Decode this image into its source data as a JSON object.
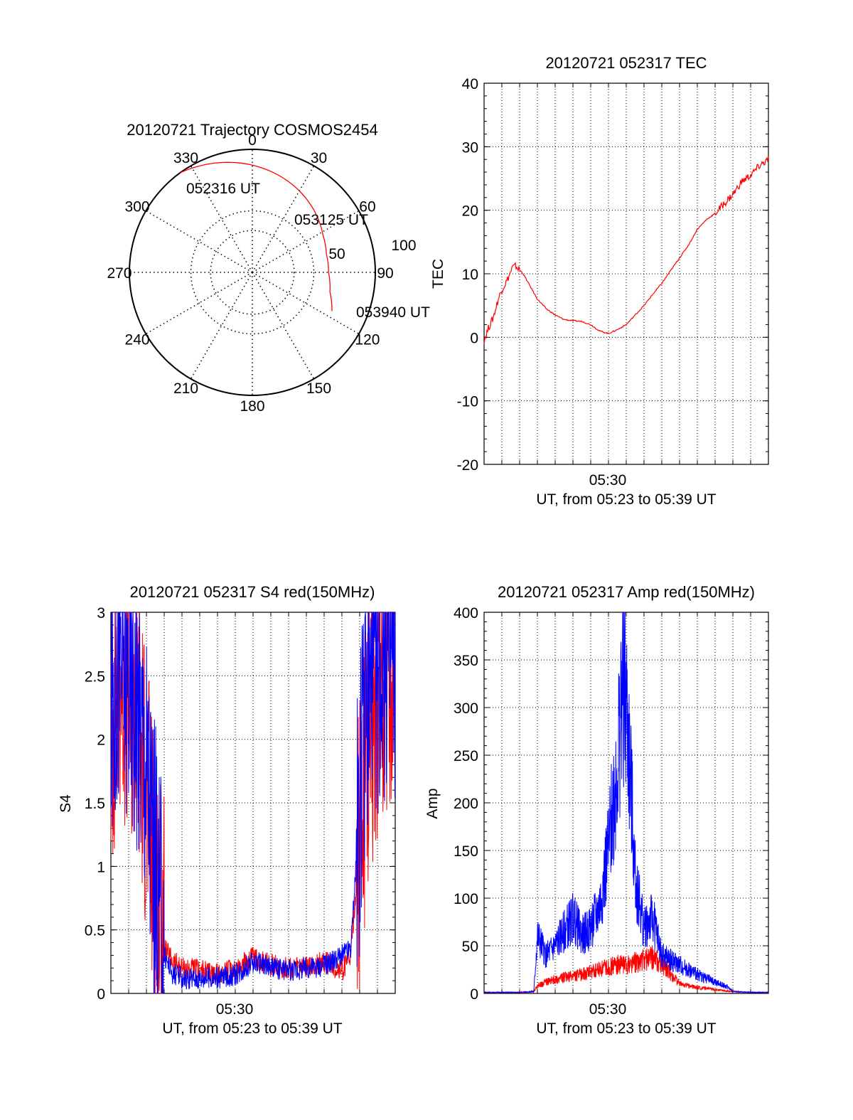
{
  "colors": {
    "red": "#ff0000",
    "blue": "#0000ff",
    "axis": "#000000",
    "grid": "#000000"
  },
  "chart_data": [
    {
      "type": "polar",
      "title": "20120721 Trajectory COSMOS2454",
      "angle_labels": [
        "0",
        "30",
        "60",
        "90",
        "120",
        "150",
        "180",
        "210",
        "240",
        "270",
        "300",
        "330"
      ],
      "radius_labels": [
        "50",
        "100"
      ],
      "grid": true,
      "trajectory": {
        "series_color": "red",
        "azimuth": [
          324,
          338,
          352,
          6,
          20,
          34,
          48,
          62,
          76,
          90,
          104,
          116
        ],
        "zenith": [
          100,
          95,
          90,
          85,
          80,
          75,
          70,
          65,
          62,
          62,
          65,
          72
        ],
        "labels": [
          "052316 UT",
          "053125 UT",
          "053940 UT"
        ]
      }
    },
    {
      "type": "line",
      "title": "20120721 052317 TEC",
      "xlabel": "UT, from 05:23 to 05:39 UT",
      "ylabel": "TEC",
      "x_tick_labels": [
        "05:30"
      ],
      "ylim": [
        -20,
        40
      ],
      "yticks": [
        "-20",
        "-10",
        "0",
        "10",
        "20",
        "30",
        "40"
      ],
      "grid": true,
      "series": [
        {
          "color": "red",
          "x": [
            0,
            0.25,
            0.5,
            0.8,
            1.0,
            1.3,
            1.6,
            1.8,
            2.2,
            2.6,
            3.0,
            3.5,
            4.0,
            4.5,
            5.0,
            5.5,
            6.0,
            6.5,
            7.0,
            7.5,
            8.0,
            8.5,
            9.0,
            9.5,
            10.0,
            10.5,
            11.0,
            11.5,
            12.0,
            12.5,
            13.0,
            13.5,
            14.0,
            14.5,
            15.0,
            15.5,
            16.0
          ],
          "y": [
            -0.5,
            1.5,
            3.0,
            6.0,
            7.5,
            9.0,
            11.0,
            11.2,
            10.0,
            8.0,
            6.0,
            4.5,
            3.5,
            2.8,
            2.6,
            2.5,
            2.0,
            1.0,
            0.6,
            1.2,
            2.0,
            3.5,
            5.0,
            6.8,
            8.5,
            10.5,
            12.5,
            14.5,
            17.0,
            18.5,
            19.5,
            21.0,
            22.5,
            24.5,
            25.5,
            27.0,
            28.0
          ]
        }
      ]
    },
    {
      "type": "line",
      "title": "20120721 052317 S4 red(150MHz)",
      "xlabel": "UT, from 05:23 to 05:39 UT",
      "ylabel": "S4",
      "x_tick_labels": [
        "05:30"
      ],
      "ylim": [
        0,
        3
      ],
      "yticks": [
        "0",
        "0.5",
        "1",
        "1.5",
        "2",
        "2.5",
        "3"
      ],
      "grid": true,
      "series": [
        {
          "color": "red",
          "x": [
            0,
            0.5,
            1.0,
            1.5,
            2.0,
            2.5,
            3.0,
            3.5,
            4.0,
            5.0,
            6.0,
            7.0,
            8.0,
            9.0,
            10.0,
            11.0,
            12.0,
            13.0,
            13.5,
            14.0,
            14.5,
            15.0,
            15.5,
            16.0
          ],
          "y": [
            2.0,
            2.6,
            2.4,
            2.2,
            1.6,
            0.8,
            0.35,
            0.25,
            0.2,
            0.18,
            0.15,
            0.2,
            0.28,
            0.22,
            0.2,
            0.2,
            0.25,
            0.18,
            0.3,
            1.2,
            2.0,
            2.4,
            2.6,
            2.5
          ]
        },
        {
          "color": "blue",
          "x": [
            0,
            0.5,
            1.0,
            1.5,
            2.0,
            2.5,
            3.0,
            3.5,
            4.0,
            5.0,
            6.0,
            7.0,
            8.0,
            9.0,
            10.0,
            11.0,
            12.0,
            13.0,
            13.5,
            14.0,
            14.5,
            15.0,
            15.5,
            16.0
          ],
          "y": [
            2.2,
            2.7,
            2.5,
            2.3,
            1.8,
            1.0,
            0.3,
            0.15,
            0.12,
            0.12,
            0.12,
            0.15,
            0.25,
            0.2,
            0.18,
            0.2,
            0.22,
            0.3,
            0.35,
            1.5,
            2.3,
            2.6,
            2.7,
            2.6
          ]
        }
      ]
    },
    {
      "type": "line",
      "title": "20120721 052317 Amp red(150MHz)",
      "xlabel": "UT, from 05:23 to 05:39 UT",
      "ylabel": "Amp",
      "x_tick_labels": [
        "05:30"
      ],
      "ylim": [
        0,
        400
      ],
      "yticks": [
        "0",
        "50",
        "100",
        "150",
        "200",
        "250",
        "300",
        "350",
        "400"
      ],
      "grid": true,
      "series": [
        {
          "color": "red",
          "x": [
            0,
            1,
            2,
            2.8,
            3.0,
            3.5,
            4.0,
            5.0,
            6.0,
            7.0,
            7.5,
            8.0,
            9.0,
            9.5,
            10.0,
            11.0,
            12.0,
            13.0,
            14.0,
            15.0,
            16.0
          ],
          "y": [
            1,
            1,
            1,
            2,
            8,
            12,
            15,
            18,
            22,
            28,
            30,
            30,
            35,
            38,
            30,
            10,
            6,
            4,
            2,
            1,
            1
          ]
        },
        {
          "color": "blue",
          "x": [
            0,
            1,
            2,
            2.8,
            3.0,
            3.5,
            4.0,
            5.0,
            5.5,
            6.0,
            6.5,
            7.0,
            7.5,
            7.8,
            8.0,
            8.3,
            8.5,
            9.0,
            9.5,
            10.0,
            11.0,
            12.0,
            13.0,
            13.8,
            14.0,
            15.0,
            16.0
          ],
          "y": [
            1,
            1,
            1,
            2,
            60,
            40,
            50,
            80,
            60,
            70,
            90,
            150,
            240,
            330,
            300,
            200,
            120,
            70,
            80,
            40,
            30,
            20,
            12,
            6,
            2,
            1,
            1
          ]
        }
      ]
    }
  ]
}
